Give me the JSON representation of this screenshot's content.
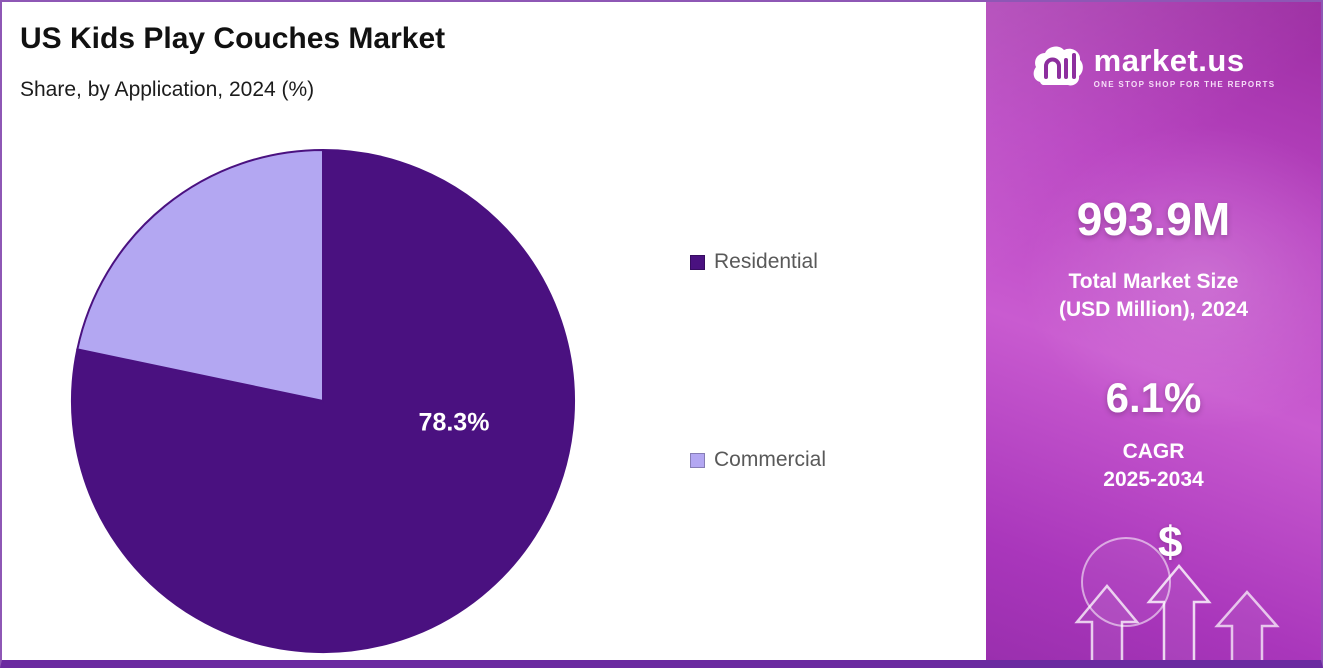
{
  "chart_data": {
    "type": "pie",
    "title": "US Kids Play Couches Market",
    "subtitle": "Share, by Application, 2024 (%)",
    "categories": [
      "Residential",
      "Commercial"
    ],
    "values": [
      78.3,
      21.7
    ],
    "colors": [
      "#4a1180",
      "#b3a7f2"
    ],
    "slice_stroke": "#4a1180",
    "data_label": "78.3%",
    "start_angle_deg": -90,
    "legend_position": "right"
  },
  "sidebar": {
    "logo": {
      "brand": "market.us",
      "tagline": "ONE STOP SHOP FOR THE REPORTS"
    },
    "market_size_value": "993.9M",
    "market_size_label_line1": "Total Market Size",
    "market_size_label_line2": "(USD Million), 2024",
    "cagr_value": "6.1%",
    "cagr_label": "CAGR",
    "cagr_period": "2025-2034",
    "dollar_symbol": "$"
  }
}
